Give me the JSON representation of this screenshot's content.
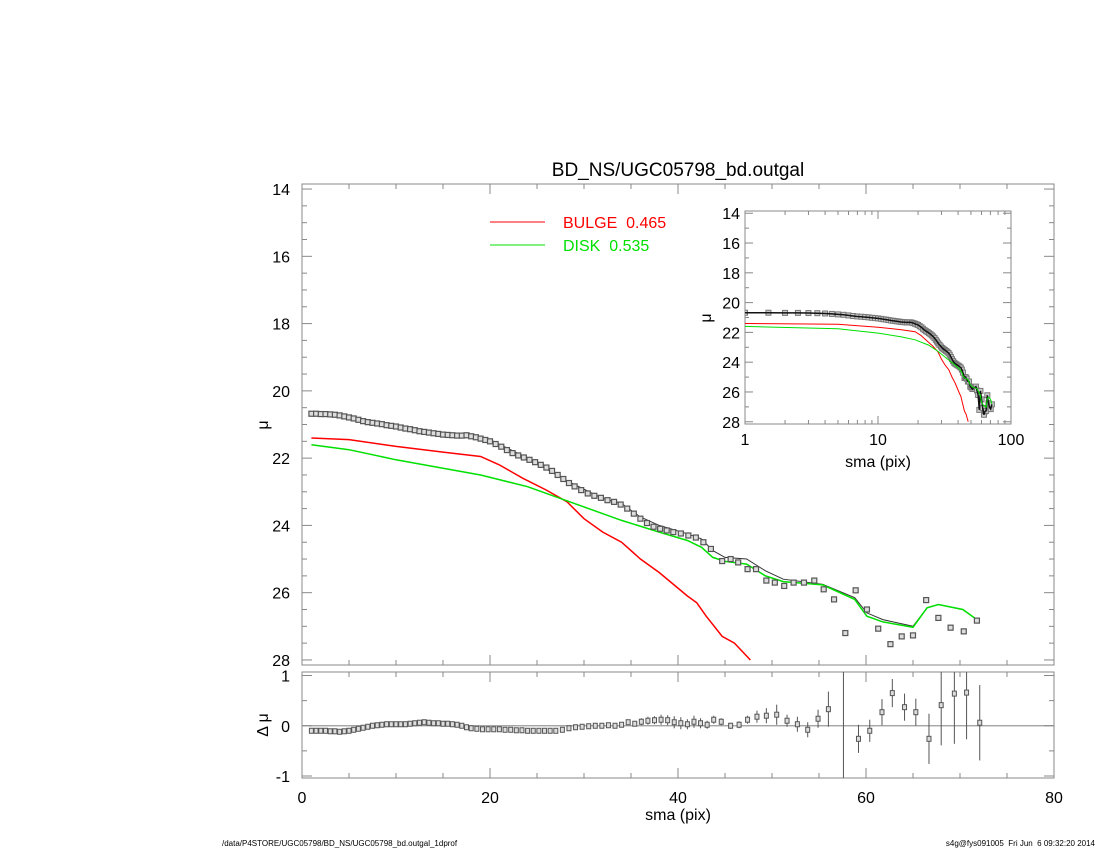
{
  "chart_data": {
    "type": "scatter",
    "title": "BD_NS/UGC05798_bd.outgal",
    "footer_left": "/data/P4STORE/UGC05798/BD_NS/UGC05798_bd.outgal_1dprof",
    "footer_right": "s4g@fys091005  Fri Jun  6 09:32:20 2014",
    "colors": {
      "data": "#555555",
      "total": "#333333",
      "bulge": "#ff0000",
      "disk": "#00e000",
      "axis": "#888888"
    },
    "main": {
      "xlabel": "sma (pix)",
      "ylabel": "μ",
      "xlim": [
        0,
        80
      ],
      "ylim": [
        28.15,
        13.85
      ],
      "xticks": [
        0,
        20,
        40,
        60,
        80
      ],
      "yticks": [
        14,
        16,
        18,
        20,
        22,
        24,
        26,
        28
      ],
      "legend": [
        {
          "label": "BULGE  0.465",
          "color": "#ff0000"
        },
        {
          "label": "DISK  0.535",
          "color": "#00e000"
        }
      ],
      "data": {
        "sma": [
          1,
          1.5,
          2,
          2.5,
          3,
          3.5,
          4,
          4.5,
          5,
          5.5,
          6,
          6.5,
          7,
          7.5,
          8,
          8.5,
          9,
          9.5,
          10,
          10.5,
          11,
          11.5,
          12,
          12.5,
          13,
          13.5,
          14,
          14.5,
          15,
          15.5,
          16,
          16.5,
          17,
          17.5,
          18,
          18.5,
          19,
          19.5,
          20,
          20.6,
          21.2,
          21.8,
          22.4,
          23,
          23.6,
          24.2,
          24.8,
          25.4,
          26,
          26.6,
          27.2,
          27.8,
          28.4,
          29,
          29.7,
          30.4,
          31.1,
          31.8,
          32.5,
          33.2,
          33.9,
          34.6,
          35.3,
          36,
          36.7,
          37.4,
          38.1,
          38.8,
          39.5,
          40.3,
          41.1,
          41.9,
          42.7,
          43.5,
          44.7,
          45.6,
          46.4,
          47.4,
          48.3,
          49.4,
          50.3,
          51.3,
          52.3,
          53.4,
          54.5,
          55.5,
          56.6,
          57.8,
          58.9,
          60.1,
          61.3,
          62.6,
          63.8,
          65,
          66.4,
          67.7,
          69,
          70.4,
          71.8
        ],
        "mu": [
          20.68,
          20.68,
          20.69,
          20.69,
          20.7,
          20.71,
          20.73,
          20.76,
          20.79,
          20.82,
          20.86,
          20.9,
          20.93,
          20.95,
          20.97,
          20.99,
          21.02,
          21.04,
          21.06,
          21.09,
          21.12,
          21.14,
          21.17,
          21.2,
          21.22,
          21.24,
          21.26,
          21.28,
          21.3,
          21.31,
          21.32,
          21.33,
          21.33,
          21.32,
          21.35,
          21.38,
          21.42,
          21.46,
          21.5,
          21.58,
          21.66,
          21.76,
          21.85,
          21.92,
          21.98,
          22.05,
          22.12,
          22.2,
          22.28,
          22.38,
          22.5,
          22.62,
          22.74,
          22.84,
          22.95,
          23.05,
          23.12,
          23.18,
          23.25,
          23.3,
          23.38,
          23.5,
          23.65,
          23.8,
          23.93,
          24.04,
          24.1,
          24.15,
          24.2,
          24.24,
          24.3,
          24.36,
          24.5,
          24.7,
          25.06,
          25.0,
          25.1,
          25.3,
          25.3,
          25.64,
          25.7,
          25.8,
          25.7,
          25.7,
          25.64,
          25.9,
          26.2,
          27.2,
          25.93,
          26.5,
          27.07,
          27.53,
          27.3,
          27.27,
          26.22,
          26.75,
          27.04,
          27.15,
          26.83
        ]
      },
      "total_model": [
        [
          1,
          20.7
        ],
        [
          5,
          20.8
        ],
        [
          10,
          21.05
        ],
        [
          15,
          21.3
        ],
        [
          18,
          21.35
        ],
        [
          20,
          21.45
        ],
        [
          24,
          22.0
        ],
        [
          28,
          22.65
        ],
        [
          32,
          23.2
        ],
        [
          34,
          23.35
        ],
        [
          36,
          23.75
        ],
        [
          38,
          24.0
        ],
        [
          41,
          24.25
        ],
        [
          42.5,
          24.4
        ],
        [
          43.7,
          24.75
        ],
        [
          45,
          24.95
        ],
        [
          47.3,
          25.0
        ],
        [
          49.3,
          25.35
        ],
        [
          51.2,
          25.6
        ],
        [
          55.4,
          25.75
        ],
        [
          58.8,
          26.15
        ],
        [
          60.1,
          26.6
        ],
        [
          61.8,
          26.8
        ],
        [
          65,
          27.0
        ],
        [
          66.5,
          26.45
        ],
        [
          67.7,
          26.35
        ],
        [
          70.3,
          26.5
        ],
        [
          71.8,
          26.8
        ]
      ],
      "bulge_model": [
        [
          1,
          21.4
        ],
        [
          5,
          21.45
        ],
        [
          10,
          21.65
        ],
        [
          15,
          21.82
        ],
        [
          19,
          21.95
        ],
        [
          21,
          22.2
        ],
        [
          23.5,
          22.6
        ],
        [
          26,
          22.95
        ],
        [
          28.2,
          23.3
        ],
        [
          30,
          23.8
        ],
        [
          32,
          24.2
        ],
        [
          34,
          24.5
        ],
        [
          36,
          25.0
        ],
        [
          38,
          25.4
        ],
        [
          41,
          26.1
        ],
        [
          42,
          26.3
        ],
        [
          43,
          26.7
        ],
        [
          44.7,
          27.3
        ],
        [
          46,
          27.5
        ],
        [
          47.7,
          28.0
        ]
      ],
      "disk_model": [
        [
          1,
          21.6
        ],
        [
          5,
          21.75
        ],
        [
          10,
          22.05
        ],
        [
          15,
          22.3
        ],
        [
          19,
          22.5
        ],
        [
          24,
          22.85
        ],
        [
          28,
          23.25
        ],
        [
          34,
          23.85
        ],
        [
          38,
          24.2
        ],
        [
          41,
          24.45
        ],
        [
          42.5,
          24.65
        ],
        [
          43.7,
          24.95
        ],
        [
          45,
          25.07
        ],
        [
          47.3,
          25.15
        ],
        [
          49.3,
          25.5
        ],
        [
          51.2,
          25.67
        ],
        [
          55.4,
          25.77
        ],
        [
          58.8,
          26.2
        ],
        [
          60.1,
          26.7
        ],
        [
          61.8,
          26.87
        ],
        [
          65,
          27.03
        ],
        [
          66.5,
          26.45
        ],
        [
          67.7,
          26.35
        ],
        [
          70.3,
          26.5
        ],
        [
          71.8,
          26.8
        ]
      ]
    },
    "residual": {
      "ylabel": "Δ μ",
      "xlim": [
        0,
        80
      ],
      "ylim": [
        -1.04,
        1.07
      ],
      "yticks": [
        -1,
        0,
        1
      ],
      "points": [
        [
          1,
          -0.1,
          0
        ],
        [
          1.5,
          -0.1,
          0
        ],
        [
          2,
          -0.1,
          0
        ],
        [
          2.5,
          -0.1,
          0
        ],
        [
          3,
          -0.11,
          0
        ],
        [
          3.5,
          -0.11,
          0
        ],
        [
          4,
          -0.12,
          0
        ],
        [
          4.5,
          -0.11,
          0
        ],
        [
          5,
          -0.1,
          0
        ],
        [
          5.5,
          -0.08,
          0
        ],
        [
          6,
          -0.06,
          0
        ],
        [
          6.5,
          -0.04,
          0
        ],
        [
          7,
          -0.02,
          0
        ],
        [
          7.5,
          0,
          0
        ],
        [
          8,
          0.01,
          0
        ],
        [
          8.5,
          0.02,
          0
        ],
        [
          9,
          0.03,
          0
        ],
        [
          9.5,
          0.03,
          0
        ],
        [
          10,
          0.03,
          0
        ],
        [
          10.5,
          0.03,
          0
        ],
        [
          11,
          0.03,
          0
        ],
        [
          11.5,
          0.04,
          0
        ],
        [
          12,
          0.05,
          0
        ],
        [
          12.5,
          0.06,
          0
        ],
        [
          13,
          0.07,
          0
        ],
        [
          13.5,
          0.06,
          0
        ],
        [
          14,
          0.05,
          0
        ],
        [
          14.5,
          0.05,
          0
        ],
        [
          15,
          0.04,
          0
        ],
        [
          15.5,
          0.04,
          0
        ],
        [
          16,
          0.03,
          0
        ],
        [
          16.5,
          0.02,
          0
        ],
        [
          17,
          0,
          0
        ],
        [
          17.5,
          -0.03,
          0
        ],
        [
          18,
          -0.05,
          0
        ],
        [
          18.6,
          -0.06,
          0
        ],
        [
          19.2,
          -0.07,
          0
        ],
        [
          19.8,
          -0.07,
          0
        ],
        [
          20.4,
          -0.07,
          0
        ],
        [
          21,
          -0.07,
          0
        ],
        [
          21.6,
          -0.08,
          0
        ],
        [
          22.2,
          -0.08,
          0
        ],
        [
          22.8,
          -0.09,
          0
        ],
        [
          23.4,
          -0.09,
          0
        ],
        [
          24,
          -0.1,
          0
        ],
        [
          24.6,
          -0.1,
          0
        ],
        [
          25.2,
          -0.1,
          0.01
        ],
        [
          25.8,
          -0.1,
          0.01
        ],
        [
          26.4,
          -0.1,
          0.01
        ],
        [
          27,
          -0.1,
          0.01
        ],
        [
          27.7,
          -0.08,
          0.01
        ],
        [
          28.4,
          -0.05,
          0.01
        ],
        [
          29.1,
          -0.03,
          0.01
        ],
        [
          29.8,
          -0.02,
          0.01
        ],
        [
          30.5,
          -0.01,
          0.01
        ],
        [
          31.2,
          0,
          0.01
        ],
        [
          31.9,
          0,
          0.01
        ],
        [
          32.6,
          0.01,
          0.02
        ],
        [
          33.3,
          0,
          0.02
        ],
        [
          34,
          0.02,
          0.03
        ],
        [
          34.7,
          0.07,
          0.05
        ],
        [
          35.4,
          0.04,
          0.05
        ],
        [
          36.1,
          0.08,
          0.07
        ],
        [
          36.8,
          0.1,
          0.08
        ],
        [
          37.5,
          0.11,
          0.08
        ],
        [
          38.2,
          0.12,
          0.1
        ],
        [
          38.9,
          0.11,
          0.1
        ],
        [
          39.6,
          0.07,
          0.12
        ],
        [
          40.3,
          0.05,
          0.12
        ],
        [
          41,
          0.03,
          0.1
        ],
        [
          41.7,
          0.08,
          0.12
        ],
        [
          42.4,
          0.05,
          0.1
        ],
        [
          43.1,
          0.02,
          0.08
        ],
        [
          43.8,
          0.12,
          0.08
        ],
        [
          44.6,
          0.08,
          0.07
        ],
        [
          45.6,
          0,
          0.06
        ],
        [
          46.5,
          0.02,
          0.07
        ],
        [
          47.4,
          0.12,
          0.08
        ],
        [
          48.4,
          0.18,
          0.12
        ],
        [
          49.4,
          0.2,
          0.15
        ],
        [
          50.5,
          0.22,
          0.2
        ],
        [
          51.6,
          0.1,
          0.12
        ],
        [
          52.7,
          0.03,
          0.15
        ],
        [
          53.8,
          -0.08,
          0.15
        ],
        [
          54.9,
          0.14,
          0.18
        ],
        [
          56,
          0.33,
          0.35
        ],
        [
          57.6,
          -3.0,
          4.5
        ],
        [
          59.2,
          -0.26,
          0.28
        ],
        [
          60.4,
          -0.1,
          0.22
        ],
        [
          61.7,
          0.27,
          0.26
        ],
        [
          62.8,
          0.65,
          0.28
        ],
        [
          64.1,
          0.37,
          0.27
        ],
        [
          65.3,
          0.27,
          0.27
        ],
        [
          66.7,
          -0.26,
          0.5
        ],
        [
          68,
          0.41,
          0.8
        ],
        [
          69.4,
          0.64,
          1.0
        ],
        [
          70.7,
          0.66,
          0.93
        ],
        [
          72.1,
          0.06,
          0.75
        ]
      ]
    },
    "inset": {
      "xlabel": "sma (pix)",
      "ylabel": "μ",
      "xscale": "log",
      "xlim": [
        1,
        100
      ],
      "ylim": [
        28.15,
        13.85
      ],
      "xticks": [
        1,
        10,
        100
      ],
      "yticks": [
        14,
        16,
        18,
        20,
        22,
        24,
        26,
        28
      ]
    }
  }
}
